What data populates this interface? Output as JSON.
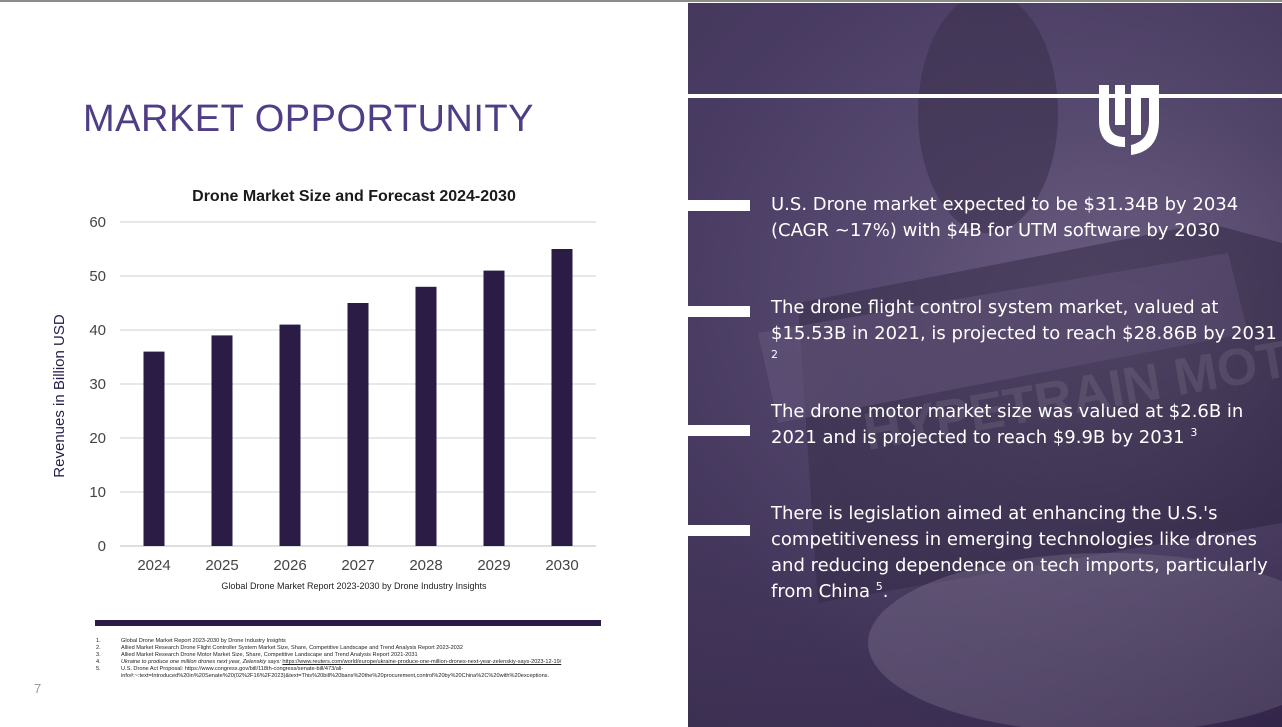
{
  "slide": {
    "title": "MARKET OPPORTUNITY",
    "page_number": "7"
  },
  "chart_data": {
    "type": "bar",
    "title": "Drone Market Size and Forecast 2024-2030",
    "categories": [
      "2024",
      "2025",
      "2026",
      "2027",
      "2028",
      "2029",
      "2030"
    ],
    "values": [
      36,
      39,
      41,
      45,
      48,
      51,
      55
    ],
    "ylabel": "Revenues in Billion USD",
    "xlabel": "",
    "ylim": [
      0,
      60
    ],
    "yticks": [
      0,
      10,
      20,
      30,
      40,
      50,
      60
    ],
    "grid": true,
    "source_note": "Global Drone Market Report 2023-2030 by Drone Industry Insights",
    "bar_color": "#2a1c45"
  },
  "references": [
    {
      "num": "1.",
      "text": "Global Drone Market Report 2023-2030 by Drone Industry Insights"
    },
    {
      "num": "2.",
      "text": "Allied Market Research Drone Flight Controller System Market Size, Share, Competitive Landscape and Trend Analysis Report 2023-2032"
    },
    {
      "num": "3.",
      "text": "Allied Market Research Drone Motor Market Size, Share, Competitive Landscape and Trend Analysis Report 2021-2031"
    },
    {
      "num": "4.",
      "text": "Ukraine to produce one million drones next year, Zelenskiy says:",
      "link": "https://www.reuters.com/world/europe/ukraine-produce-one-million-drones-next-year-zelenskiy-says-2023-12-19/"
    },
    {
      "num": "5.",
      "text": "U.S. Drone Act Proposal: https://www.congress.gov/bill/118th-congress/senate-bill/473/all-",
      "cont": "info#:~:text=Introduced%20in%20Senate%20(02%2F16%2F2023)&text=This%20bill%20bans%20the%20procurement,control%20by%20China%2C%20with%20exceptions."
    }
  ],
  "bullets": [
    {
      "text": "U.S. Drone market expected to be $31.34B by 2034 (CAGR ~17%) with $4B for UTM software by 2030",
      "sup": ""
    },
    {
      "text": "The drone flight control system market, valued at $15.53B in 2021, is projected to reach $28.86B by 2031",
      "sup": "2"
    },
    {
      "text": "The drone motor market size was valued at $2.6B in 2021 and is projected to reach $9.9B by 2031",
      "sup": "3"
    },
    {
      "text": "There is legislation aimed at enhancing the U.S.'s competitiveness in emerging technologies like drones and reducing dependence on tech imports, particularly from China",
      "sup": "5",
      "suffix": "."
    }
  ],
  "background_text": "HYPETRAIN MOTORS",
  "colors": {
    "title": "#4f3d86",
    "panel": "#3f3059",
    "bars": "#2a1c45"
  }
}
